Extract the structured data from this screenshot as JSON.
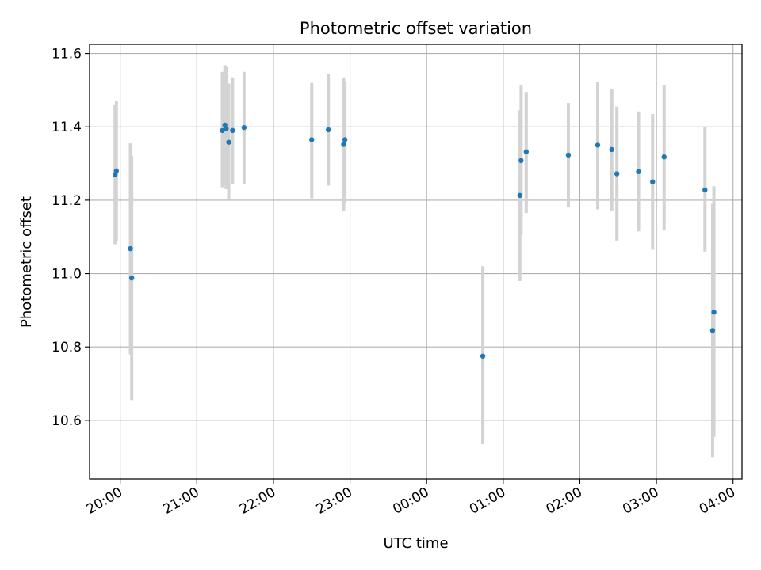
{
  "chart_data": {
    "type": "scatter",
    "title": "Photometric offset variation",
    "xlabel": "UTC time",
    "ylabel": "Photometric offset",
    "x_axis": {
      "kind": "time",
      "range": [
        "19:36",
        "04:07"
      ],
      "ticks": [
        "20:00",
        "21:00",
        "22:00",
        "23:00",
        "00:00",
        "01:00",
        "02:00",
        "03:00",
        "04:00"
      ],
      "tick_label_rotation_deg": 30
    },
    "y_axis": {
      "range": [
        10.44,
        11.625
      ],
      "ticks": [
        "10.6",
        "10.8",
        "11.0",
        "11.2",
        "11.4",
        "11.6"
      ]
    },
    "grid": true,
    "colors": {
      "points": "#1f77b4",
      "errorbars": "#d3d3d3",
      "grid": "#b0b0b0"
    },
    "series": [
      {
        "points": [
          {
            "x": "19:56",
            "y": 11.27,
            "err_low": 11.08,
            "err_high": 11.46
          },
          {
            "x": "19:57",
            "y": 11.28,
            "err_low": 11.09,
            "err_high": 11.47
          },
          {
            "x": "20:08",
            "y": 11.068,
            "err_low": 10.78,
            "err_high": 11.355
          },
          {
            "x": "20:09",
            "y": 10.988,
            "err_low": 10.655,
            "err_high": 11.32
          },
          {
            "x": "21:20",
            "y": 11.39,
            "err_low": 11.235,
            "err_high": 11.55
          },
          {
            "x": "21:22",
            "y": 11.405,
            "err_low": 11.24,
            "err_high": 11.568
          },
          {
            "x": "21:23",
            "y": 11.395,
            "err_low": 11.23,
            "err_high": 11.565
          },
          {
            "x": "21:25",
            "y": 11.358,
            "err_low": 11.2,
            "err_high": 11.518
          },
          {
            "x": "21:28",
            "y": 11.39,
            "err_low": 11.245,
            "err_high": 11.535
          },
          {
            "x": "21:37",
            "y": 11.398,
            "err_low": 11.245,
            "err_high": 11.55
          },
          {
            "x": "22:30",
            "y": 11.365,
            "err_low": 11.205,
            "err_high": 11.52
          },
          {
            "x": "22:43",
            "y": 11.392,
            "err_low": 11.24,
            "err_high": 11.545
          },
          {
            "x": "22:55",
            "y": 11.352,
            "err_low": 11.17,
            "err_high": 11.535
          },
          {
            "x": "22:56",
            "y": 11.365,
            "err_low": 11.19,
            "err_high": 11.525
          },
          {
            "x": "00:44",
            "y": 10.775,
            "err_low": 10.535,
            "err_high": 11.02
          },
          {
            "x": "01:13",
            "y": 11.213,
            "err_low": 10.98,
            "err_high": 11.445
          },
          {
            "x": "01:14",
            "y": 11.308,
            "err_low": 11.105,
            "err_high": 11.515
          },
          {
            "x": "01:18",
            "y": 11.332,
            "err_low": 11.165,
            "err_high": 11.495
          },
          {
            "x": "01:51",
            "y": 11.323,
            "err_low": 11.18,
            "err_high": 11.465
          },
          {
            "x": "02:14",
            "y": 11.35,
            "err_low": 11.175,
            "err_high": 11.522
          },
          {
            "x": "02:25",
            "y": 11.338,
            "err_low": 11.172,
            "err_high": 11.502
          },
          {
            "x": "02:29",
            "y": 11.272,
            "err_low": 11.09,
            "err_high": 11.455
          },
          {
            "x": "02:46",
            "y": 11.278,
            "err_low": 11.115,
            "err_high": 11.442
          },
          {
            "x": "02:57",
            "y": 11.25,
            "err_low": 11.065,
            "err_high": 11.435
          },
          {
            "x": "03:06",
            "y": 11.318,
            "err_low": 11.118,
            "err_high": 11.515
          },
          {
            "x": "03:38",
            "y": 11.228,
            "err_low": 11.06,
            "err_high": 11.4
          },
          {
            "x": "03:44",
            "y": 10.845,
            "err_low": 10.5,
            "err_high": 11.19
          },
          {
            "x": "03:45",
            "y": 10.895,
            "err_low": 10.555,
            "err_high": 11.238
          }
        ]
      }
    ]
  }
}
